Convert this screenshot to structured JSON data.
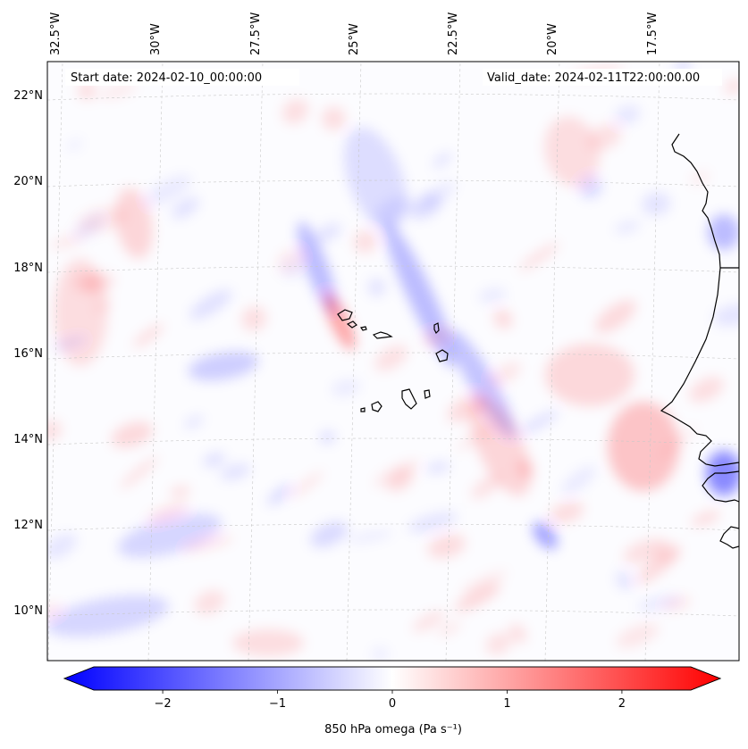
{
  "map": {
    "lon_labels": [
      "32.5°W",
      "30°W",
      "27.5°W",
      "25°W",
      "22.5°W",
      "20°W",
      "17.5°W"
    ],
    "lat_labels": [
      "22°N",
      "20°N",
      "18°N",
      "16°N",
      "14°N",
      "12°N",
      "10°N"
    ],
    "start_date": "Start date: 2024-02-10_00:00:00",
    "valid_date": "Valid_date: 2024-02-11T22:00:00.00",
    "field_colors": {
      "negative": "#0000ff",
      "zero": "#ffffff",
      "positive": "#ff0000",
      "coastline": "#000000",
      "gridline": "#c8c8c8"
    }
  },
  "colorbar": {
    "ticks": [
      -2,
      -1,
      0,
      1,
      2
    ],
    "tick_labels": [
      "−2",
      "−1",
      "0",
      "1",
      "2"
    ],
    "range": [
      -2.6,
      2.6
    ],
    "label": "850 hPa omega (Pa s⁻¹)"
  }
}
